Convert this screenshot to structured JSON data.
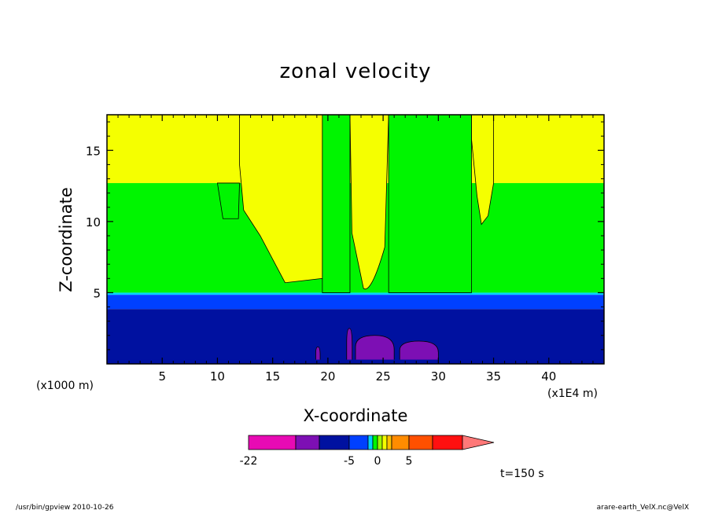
{
  "chart_data": {
    "type": "heatmap",
    "title": "zonal velocity",
    "xlabel": "X-coordinate",
    "ylabel": "Z-coordinate",
    "x_unit_left": "(x1000 m)",
    "x_unit_right": "(x1E4 m)",
    "xlim": [
      0,
      45
    ],
    "ylim": [
      0,
      17.5
    ],
    "xticks": [
      5,
      10,
      15,
      20,
      25,
      30,
      35,
      40
    ],
    "yticks": [
      5,
      10,
      15
    ],
    "grid": false,
    "colorbar": {
      "colors": [
        "#e80ab4",
        "#7d0fb4",
        "#0011a0",
        "#0040ff",
        "#00d2ff",
        "#00f500",
        "#9ef700",
        "#f5ff00",
        "#ffc200",
        "#ff8c00",
        "#ff5000",
        "#ff1010",
        "#ff7878"
      ],
      "tick_labels": [
        "-22",
        "-5",
        "0",
        "5"
      ]
    },
    "fields": {
      "upper_level": {
        "color": "#f5ff00",
        "z_range": [
          12.7,
          17.5
        ]
      },
      "middle_level": {
        "color": "#00f500",
        "z_range": [
          5.0,
          12.7
        ]
      },
      "transition_bands": [
        {
          "color": "#00d2ff",
          "z_range": [
            4.85,
            5.0
          ]
        },
        {
          "color": "#0040ff",
          "z_range": [
            3.85,
            4.85
          ]
        }
      ],
      "lower_level": {
        "color": "#0011a0",
        "z_range": [
          0,
          3.85
        ]
      },
      "intrusions": [
        {
          "name": "left-yellow-plume",
          "color": "#f5ff00",
          "x_range": [
            12.0,
            19.5
          ],
          "z_bottom": 6.0
        },
        {
          "name": "center-yellow-plume",
          "color": "#f5ff00",
          "x_range": [
            22.0,
            25.5
          ],
          "z_bottom": 5.2
        },
        {
          "name": "right-yellow-plume",
          "color": "#f5ff00",
          "x_range": [
            33.0,
            35.0
          ],
          "z_bottom": 9.8
        },
        {
          "name": "center-green-column",
          "color": "#00f500",
          "x_range": [
            19.5,
            22.0
          ],
          "z_bottom": 5.0
        },
        {
          "name": "right-green-column",
          "color": "#00f500",
          "x_range": [
            25.5,
            33.0
          ],
          "z_bottom": 5.0
        }
      ],
      "negative_cores": [
        {
          "name": "core-a",
          "color": "#7d0fb4",
          "x_range": [
            22.5,
            26.0
          ],
          "z_top": 2.0
        },
        {
          "name": "core-b",
          "color": "#7d0fb4",
          "x_range": [
            26.5,
            30.0
          ],
          "z_top": 1.6
        },
        {
          "name": "core-c",
          "color": "#7d0fb4",
          "x_range": [
            18.9,
            19.3
          ],
          "z_top": 1.2
        },
        {
          "name": "core-d",
          "color": "#7d0fb4",
          "x_range": [
            21.7,
            22.2
          ],
          "z_top": 2.5
        }
      ]
    }
  },
  "annotations": {
    "time": "t=150 s",
    "footer_left": "/usr/bin/gpview   2010-10-26",
    "footer_right": "arare-earth_VelX.nc@VelX"
  }
}
